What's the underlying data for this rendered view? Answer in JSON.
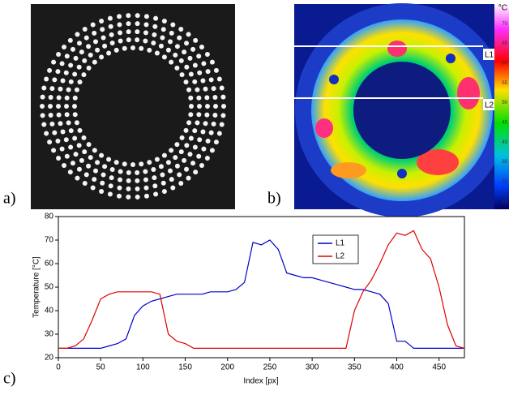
{
  "panels": {
    "a": "a)",
    "b": "b)",
    "c": "c)"
  },
  "thermal": {
    "lines": [
      "L1",
      "L2"
    ],
    "colorbar": {
      "unit": "°C",
      "ticks": [
        70,
        65,
        60,
        55,
        50,
        45,
        40,
        35,
        30,
        25
      ]
    }
  },
  "chart_data": {
    "type": "line",
    "x_label": "Index [px]",
    "y_label": "Temperature [°C]",
    "x": [
      0,
      10,
      20,
      30,
      40,
      50,
      60,
      70,
      80,
      90,
      100,
      110,
      120,
      130,
      140,
      150,
      160,
      170,
      180,
      190,
      200,
      210,
      220,
      230,
      240,
      250,
      260,
      270,
      280,
      290,
      300,
      310,
      320,
      330,
      340,
      350,
      360,
      370,
      380,
      390,
      400,
      410,
      420,
      430,
      440,
      450,
      460,
      470,
      480
    ],
    "series": [
      {
        "name": "L1",
        "color": "#0000cc",
        "values": [
          24,
          24,
          24,
          24,
          24,
          24,
          25,
          26,
          28,
          38,
          42,
          44,
          45,
          46,
          47,
          47,
          47,
          47,
          48,
          48,
          48,
          49,
          52,
          69,
          68,
          70,
          66,
          56,
          55,
          54,
          54,
          53,
          52,
          51,
          50,
          49,
          49,
          48,
          47,
          43,
          27,
          27,
          24,
          24,
          24,
          24,
          24,
          24,
          24
        ]
      },
      {
        "name": "L2",
        "color": "#dd0000",
        "values": [
          24,
          24,
          25,
          28,
          36,
          45,
          47,
          48,
          48,
          48,
          48,
          48,
          47,
          30,
          27,
          26,
          24,
          24,
          24,
          24,
          24,
          24,
          24,
          24,
          24,
          24,
          24,
          24,
          24,
          24,
          24,
          24,
          24,
          24,
          24,
          40,
          48,
          53,
          60,
          68,
          73,
          72,
          74,
          66,
          62,
          50,
          34,
          25,
          24
        ]
      }
    ],
    "xlim": [
      0,
      480
    ],
    "xticks": [
      0,
      50,
      100,
      150,
      200,
      250,
      300,
      350,
      400,
      450
    ],
    "ylim": [
      20,
      80
    ],
    "yticks": [
      20,
      30,
      40,
      50,
      60,
      70,
      80
    ],
    "grid": false
  }
}
